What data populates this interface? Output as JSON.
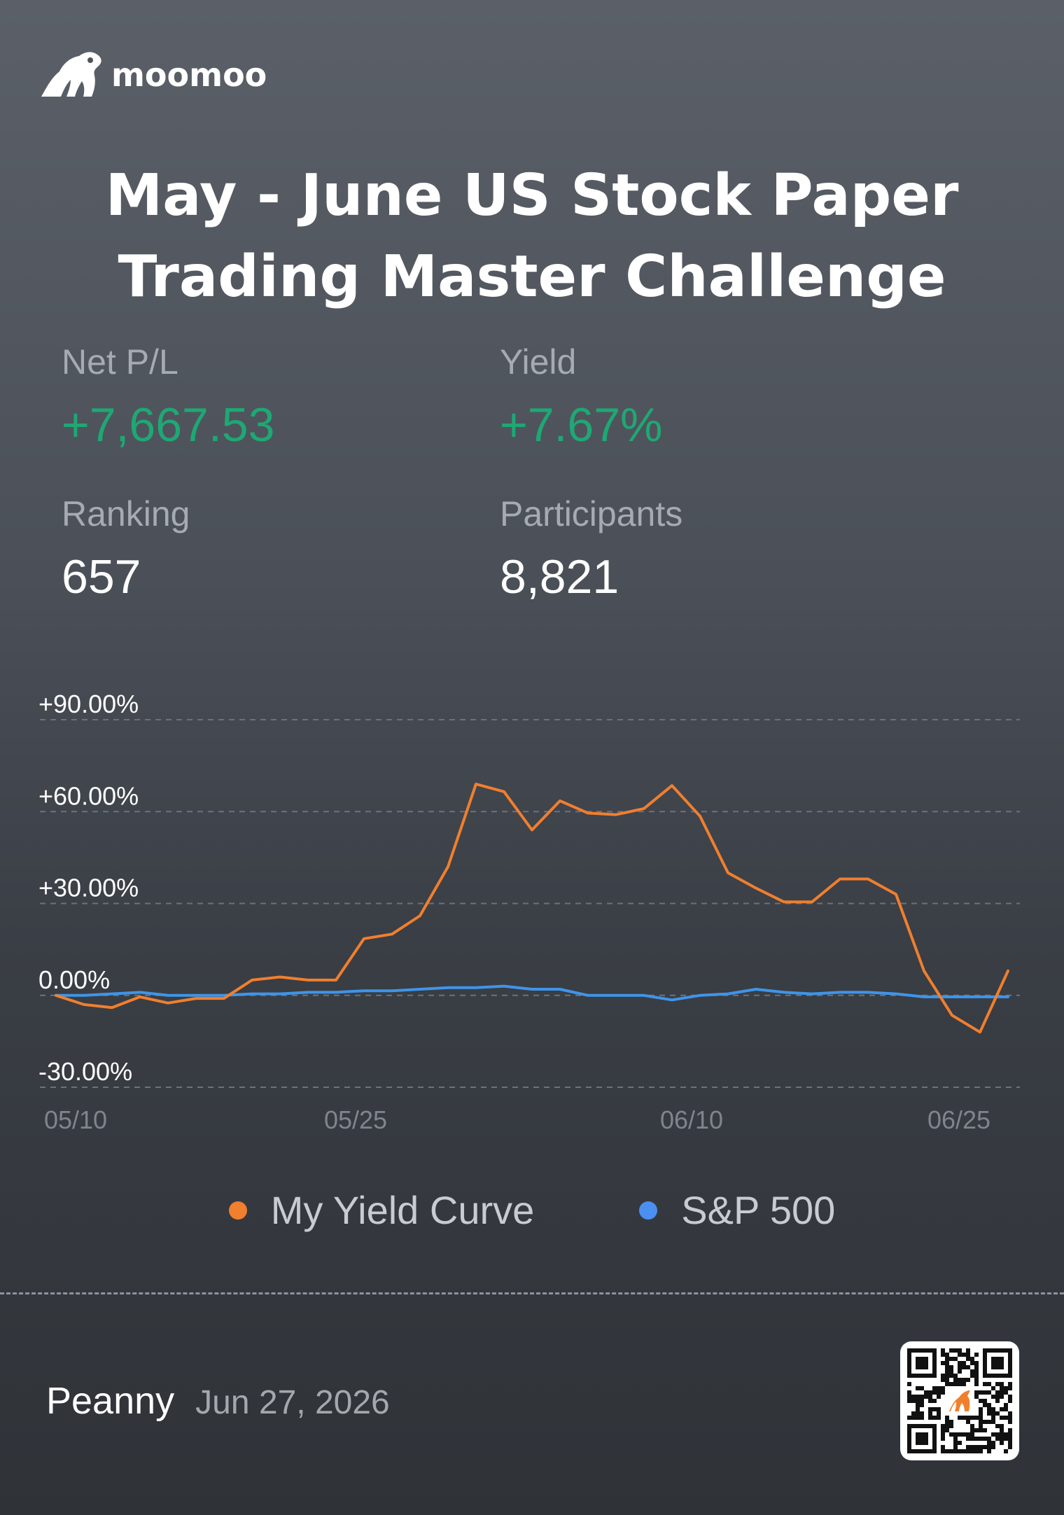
{
  "brand": {
    "name": "moomoo"
  },
  "title": {
    "line1": "May - June US Stock Paper",
    "line2": "Trading Master Challenge"
  },
  "stats": {
    "net_pl": {
      "label": "Net P/L",
      "value": "+7,667.53"
    },
    "yield": {
      "label": "Yield",
      "value": "+7.67%"
    },
    "ranking": {
      "label": "Ranking",
      "value": "657"
    },
    "participants": {
      "label": "Participants",
      "value": "8,821"
    }
  },
  "colors": {
    "positive": "#1ea874",
    "my_curve": "#f07f2e",
    "sp500": "#3f95e8",
    "legend_sp500_dot": "#4b8ff0"
  },
  "chart_data": {
    "type": "line",
    "x_ticks": [
      "05/10",
      "05/25",
      "06/10",
      "06/25"
    ],
    "y_ticks": [
      "+90.00%",
      "+60.00%",
      "+30.00%",
      "0.00%",
      "-30.00%"
    ],
    "ylim": [
      -30,
      90
    ],
    "grid": true,
    "legend_position": "bottom",
    "series": [
      {
        "name": "My Yield Curve",
        "values": [
          0,
          -3,
          -4,
          -0.5,
          -2.5,
          -1,
          -1,
          5,
          6,
          5,
          5,
          18.5,
          20,
          26,
          42,
          69,
          66.5,
          54,
          63.5,
          59.5,
          59,
          61,
          68.5,
          58.5,
          40,
          35,
          30.5,
          30.5,
          38,
          38,
          33,
          8,
          -6.5,
          -12,
          8
        ]
      },
      {
        "name": "S&P 500",
        "values": [
          0,
          0,
          0.5,
          1,
          0,
          0,
          0,
          0.5,
          0.5,
          1,
          1,
          1.5,
          1.5,
          2,
          2.5,
          2.5,
          3,
          2,
          2,
          0,
          0,
          0,
          -1.5,
          0,
          0.5,
          2,
          1,
          0.5,
          1,
          1,
          0.5,
          -0.5,
          -0.5,
          -0.5,
          -0.5
        ]
      }
    ]
  },
  "legend": {
    "my_curve": "My Yield Curve",
    "sp500": "S&P 500"
  },
  "footer": {
    "username": "Peanny",
    "date": "Jun 27, 2026"
  }
}
